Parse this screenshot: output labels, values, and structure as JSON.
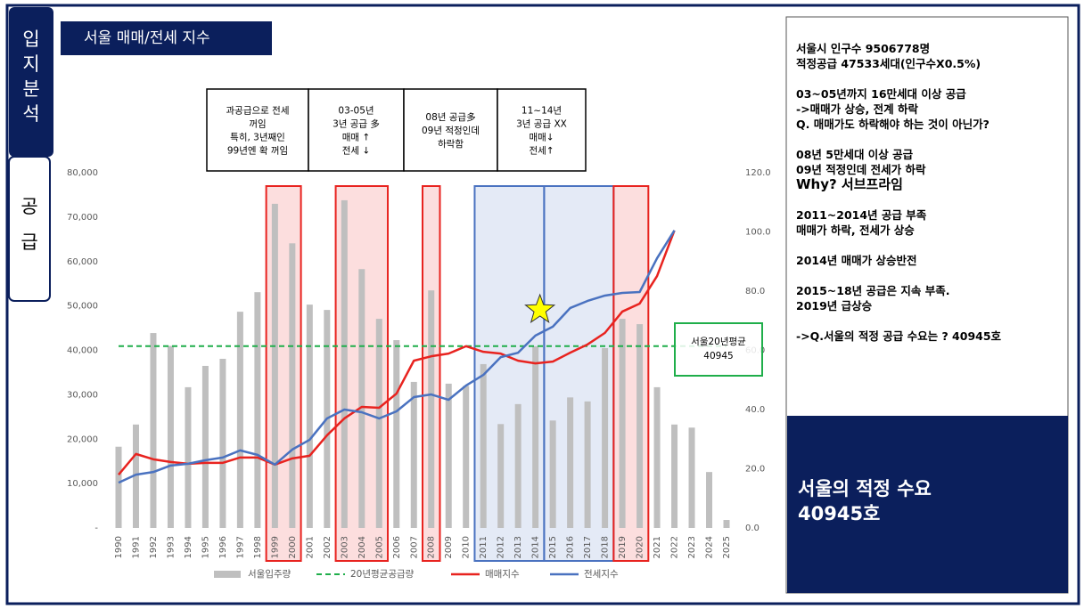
{
  "tabs": [
    "입지분석",
    "공급"
  ],
  "title": "서울 매매/전세 지수",
  "annotations": [
    [
      "과공급으로 전세",
      "꺼임",
      "특히, 3년째인",
      "99년엔 확 꺼임"
    ],
    [
      "03-05년",
      "3년 공급 多",
      "매매 ↑",
      "전세 ↓"
    ],
    [
      "08년 공급多",
      "09년 적정인데",
      "하락함"
    ],
    [
      "11~14년",
      "3년 공급 XX",
      "매매↓",
      "전세↑"
    ]
  ],
  "avg_label": "서울20년평균",
  "notes": [
    [
      "서울시 인구수 9506778명",
      "적정공급 47533세대(인구수X0.5%)"
    ],
    [
      "03~05년까지 16만세대 이상 공급",
      "->매매가 상승, 전계 하락",
      "Q. 매매가도 하락해야 하는 것이 아닌가?"
    ],
    [
      "08년 5만세대 이상 공급",
      "09년 적정인데 전세가 하락",
      "Why? 서브프라임"
    ],
    [
      "2011~2014년 공급 부족",
      "매매가 하락, 전세가 상승"
    ],
    [
      "2014년 매매가 상승반전"
    ],
    [
      "2015~18년 공급은 지속 부족.",
      "2019년 급상승"
    ],
    [
      "->Q.서울의 적정 공급 수요는 ? 40945호"
    ]
  ],
  "conclusion": [
    "서울의 적정 수요",
    "40945호"
  ],
  "chart_data": {
    "type": "bar",
    "categories": [
      "1990",
      "1991",
      "1992",
      "1993",
      "1994",
      "1995",
      "1996",
      "1997",
      "1998",
      "1999",
      "2000",
      "2001",
      "2002",
      "2003",
      "2004",
      "2005",
      "2006",
      "2007",
      "2008",
      "2009",
      "2010",
      "2011",
      "2012",
      "2013",
      "2014",
      "2015",
      "2016",
      "2017",
      "2018",
      "2019",
      "2020",
      "2021",
      "2022",
      "2023",
      "2024",
      "2025"
    ],
    "series": [
      {
        "name": "서울입주량",
        "type": "bar",
        "color": "#bfbfbf",
        "values": [
          18300,
          23300,
          43900,
          41000,
          31700,
          36500,
          38100,
          48700,
          53100,
          73000,
          64100,
          50300,
          49100,
          73800,
          58300,
          47100,
          42300,
          32900,
          53500,
          32500,
          32000,
          36900,
          23400,
          27900,
          40900,
          24200,
          29400,
          28500,
          40500,
          47100,
          45900,
          31700,
          23300,
          22600,
          12600,
          1800
        ]
      },
      {
        "name": "20년평균공급량",
        "type": "hline",
        "color": "#1fae4a",
        "value": 40945
      },
      {
        "name": "매매지수",
        "type": "line",
        "axis": "y2",
        "color": "#e8231f",
        "values": [
          18.0,
          25.0,
          23.2,
          22.3,
          21.7,
          22.0,
          22.0,
          23.8,
          23.8,
          21.4,
          23.5,
          24.4,
          31.3,
          37.0,
          40.9,
          40.6,
          45.4,
          56.5,
          58.0,
          58.9,
          61.4,
          59.5,
          58.9,
          56.5,
          55.6,
          56.2,
          59.2,
          62.0,
          65.9,
          73.1,
          75.8,
          85.1,
          100.5,
          null,
          null,
          null
        ]
      },
      {
        "name": "전세지수",
        "type": "line",
        "axis": "y2",
        "color": "#4a72c0",
        "values": [
          15.3,
          18.0,
          18.9,
          21.1,
          21.7,
          22.9,
          23.8,
          26.2,
          24.7,
          21.4,
          26.5,
          29.8,
          37.0,
          40.0,
          39.1,
          37.0,
          39.4,
          44.2,
          45.1,
          43.3,
          48.1,
          51.7,
          57.7,
          59.2,
          65.0,
          68.0,
          74.3,
          76.7,
          78.5,
          79.4,
          79.7,
          91.1,
          100.5,
          null,
          null,
          null
        ]
      }
    ],
    "highlights": [
      {
        "from": 9,
        "to": 10,
        "color": "#e8231f"
      },
      {
        "from": 13,
        "to": 15,
        "color": "#e8231f"
      },
      {
        "from": 18,
        "to": 18,
        "color": "#e8231f"
      },
      {
        "from": 21,
        "to": 24,
        "color": "#4a72c0"
      },
      {
        "from": 25,
        "to": 28,
        "color": "#4a72c0"
      },
      {
        "from": 29,
        "to": 30,
        "color": "#e8231f"
      }
    ],
    "ylim": [
      0,
      80000
    ],
    "yticks": [
      {
        "value": 0,
        "label": "-"
      },
      {
        "value": 10000,
        "label": "10,000"
      },
      {
        "value": 20000,
        "label": "20,000"
      },
      {
        "value": 30000,
        "label": "30,000"
      },
      {
        "value": 40000,
        "label": "40,000"
      },
      {
        "value": 50000,
        "label": "50,000"
      },
      {
        "value": 60000,
        "label": "60,000"
      },
      {
        "value": 70000,
        "label": "70,000"
      },
      {
        "value": 80000,
        "label": "80,000"
      }
    ],
    "y2lim": [
      0,
      120
    ],
    "y2ticks": [
      {
        "value": 0,
        "label": "0.0"
      },
      {
        "value": 20,
        "label": "20.0"
      },
      {
        "value": 40,
        "label": "40.0"
      },
      {
        "value": 60,
        "label": "60.0"
      },
      {
        "value": 80,
        "label": "80.0"
      },
      {
        "value": 100,
        "label": "100.0"
      },
      {
        "value": 120,
        "label": "120.0"
      }
    ],
    "grid": false,
    "legend": "bottom"
  }
}
